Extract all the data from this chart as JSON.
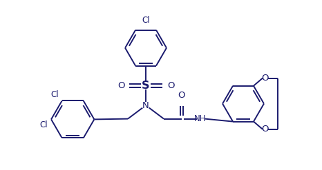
{
  "background_color": "#ffffff",
  "line_color": "#1a1a6e",
  "line_width": 1.4,
  "font_size": 8.5,
  "figsize": [
    4.66,
    2.47
  ],
  "dpi": 100,
  "xlim": [
    -5.8,
    5.8
  ],
  "ylim": [
    -2.6,
    3.4
  ]
}
